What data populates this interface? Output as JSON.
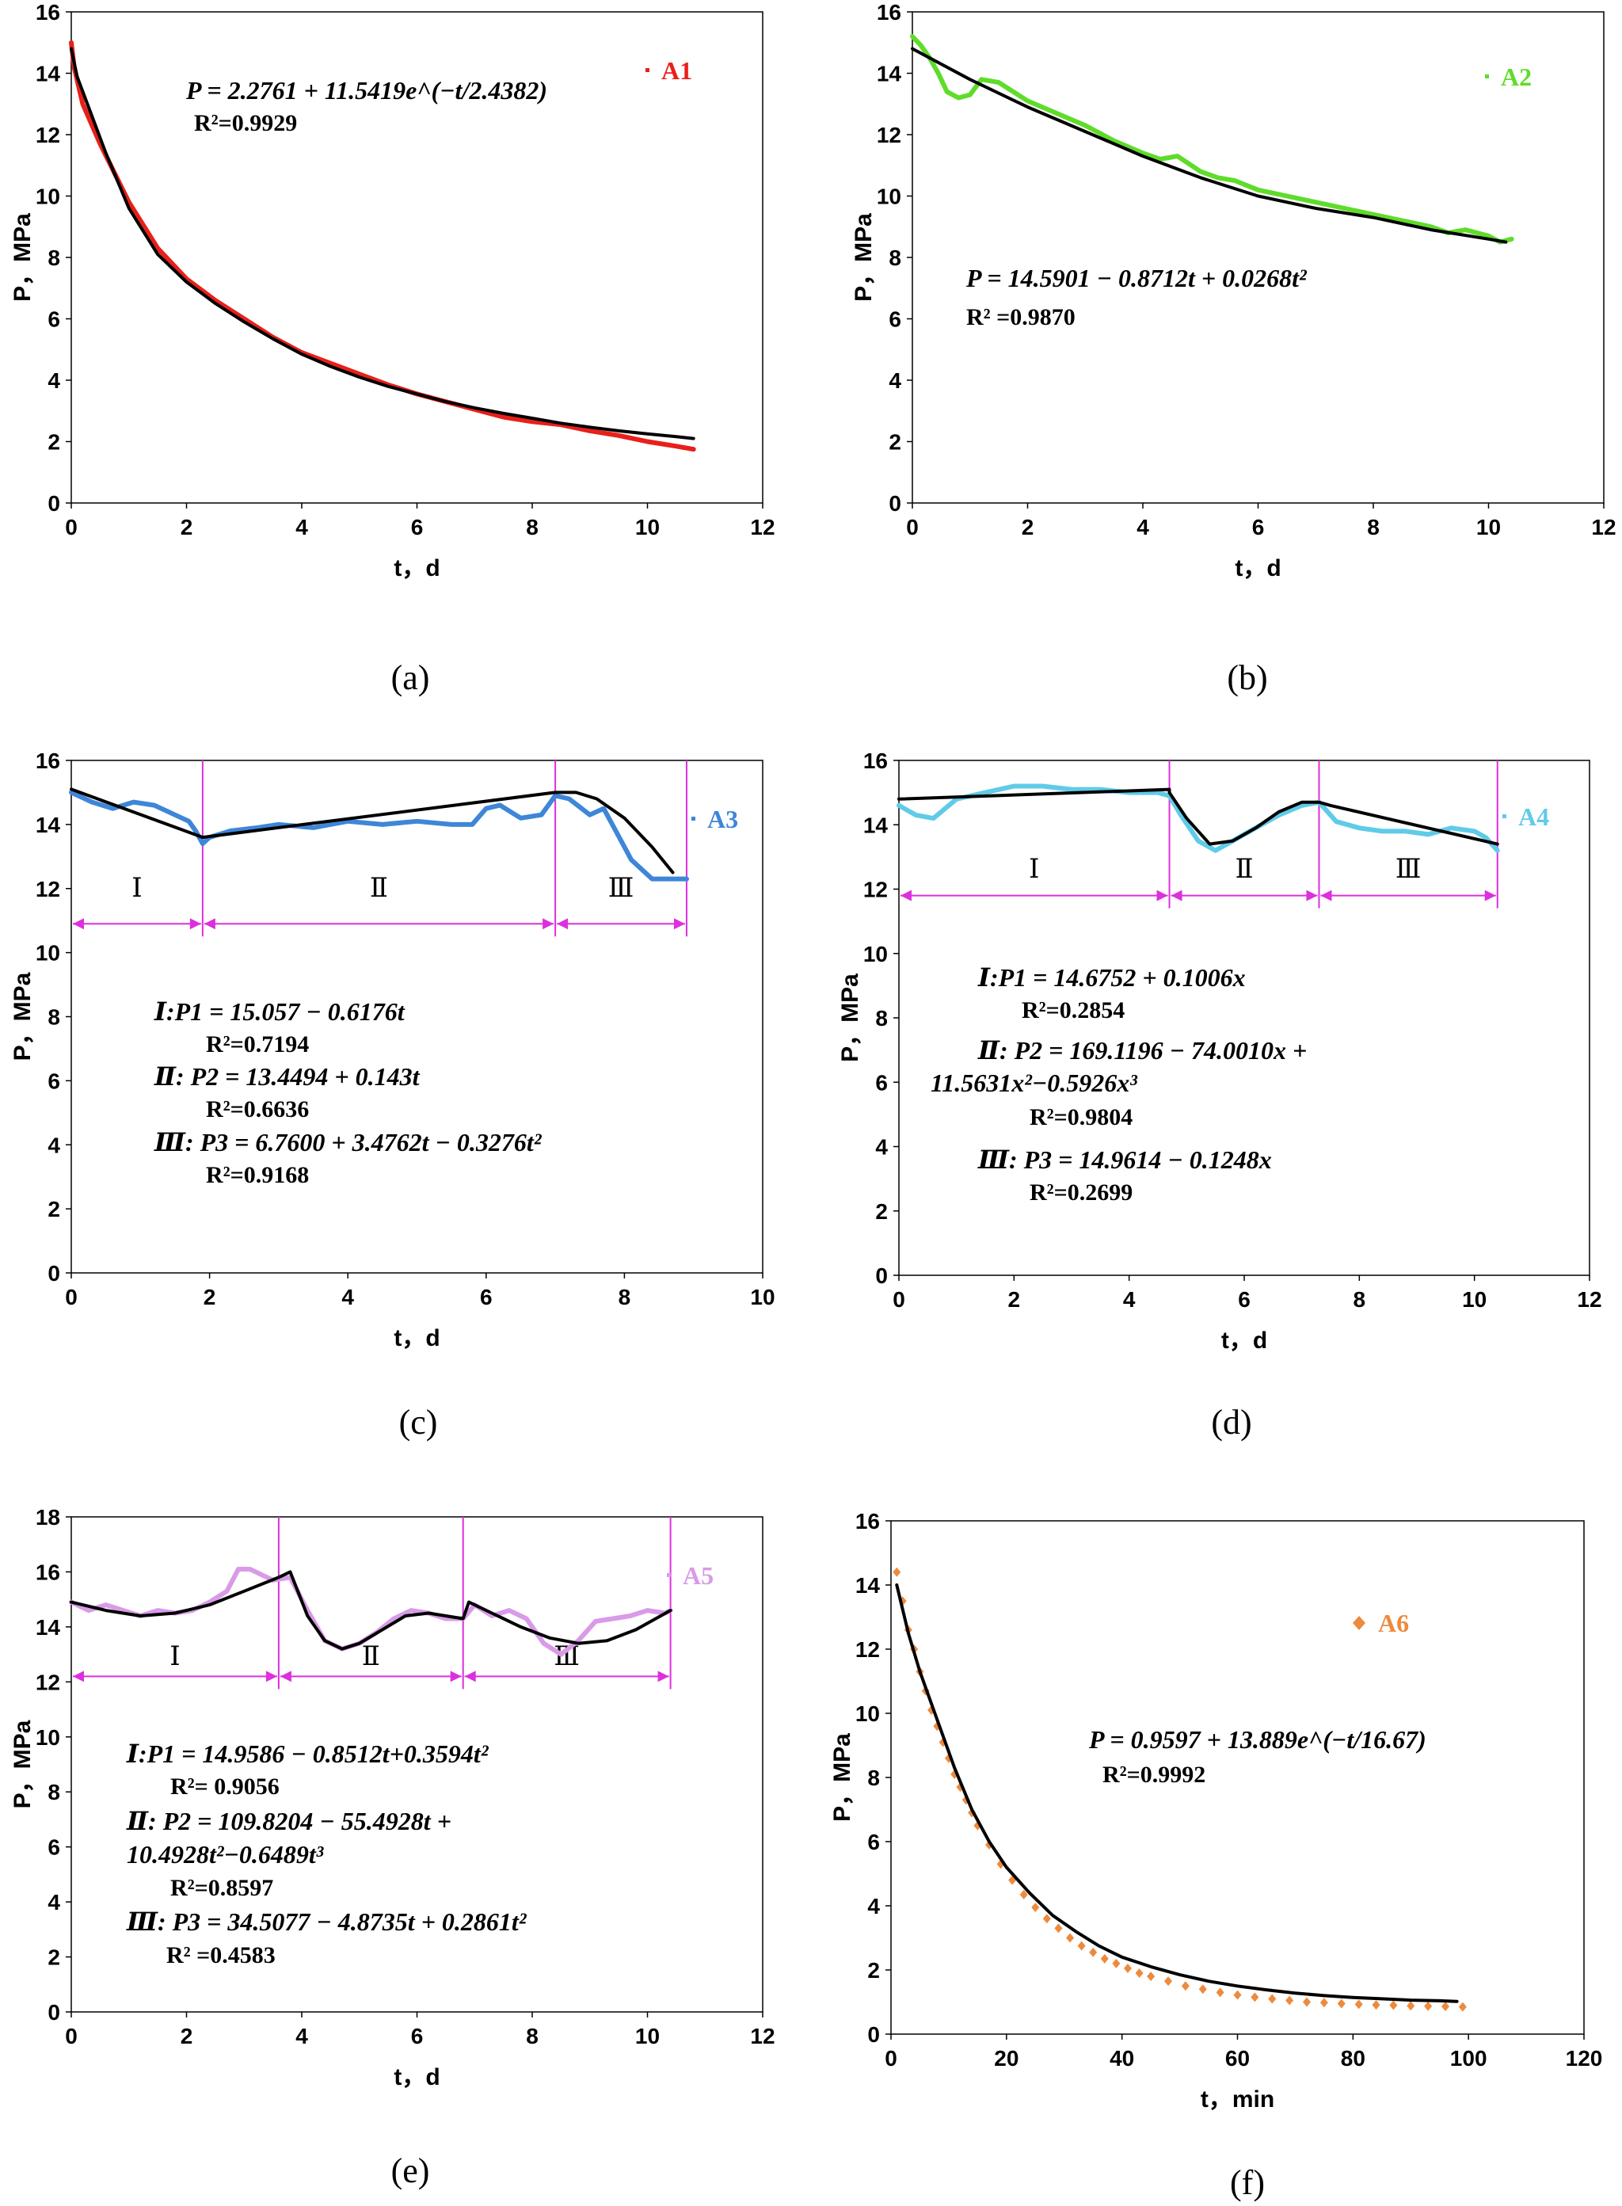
{
  "colors": {
    "A1": "#e8201a",
    "A2": "#5fdc2a",
    "A3": "#3e86d8",
    "A4": "#5fcbe8",
    "A5": "#d99ae8",
    "A6": "#ee8a3c",
    "fit": "#000000",
    "stage": "#dd2fdd"
  },
  "chart_data": [
    {
      "id": "a",
      "type": "line",
      "caption": "(a)",
      "xlabel": "t，d",
      "ylabel": "P，MPa",
      "xlim": [
        0,
        12
      ],
      "ylim": [
        0,
        16
      ],
      "xticks": [
        0,
        2,
        4,
        6,
        8,
        10,
        12
      ],
      "yticks": [
        0,
        2,
        4,
        6,
        8,
        10,
        12,
        14,
        16
      ],
      "legend": "A1",
      "legend_style": "dot",
      "equations": [
        "P = 2.2761 + 11.5419e^(−t/2.4382)"
      ],
      "r2": [
        "R²=0.9929"
      ],
      "series": [
        {
          "name": "A1",
          "role": "data",
          "color_key": "A1",
          "x": [
            0,
            0.05,
            0.2,
            0.5,
            1,
            1.5,
            2,
            2.5,
            3,
            3.5,
            4,
            4.5,
            5,
            5.5,
            6,
            6.5,
            7,
            7.5,
            8,
            8.5,
            9,
            9.5,
            10,
            10.5,
            10.8
          ],
          "y": [
            15.0,
            14.2,
            13.0,
            11.7,
            9.8,
            8.3,
            7.3,
            6.6,
            6.0,
            5.4,
            4.9,
            4.55,
            4.2,
            3.85,
            3.55,
            3.3,
            3.05,
            2.8,
            2.65,
            2.55,
            2.35,
            2.2,
            2.0,
            1.85,
            1.75
          ]
        },
        {
          "name": "fit",
          "role": "fit",
          "color_key": "fit",
          "x": [
            0,
            0.1,
            0.3,
            0.6,
            1,
            1.5,
            2,
            2.5,
            3,
            3.5,
            4,
            4.5,
            5,
            5.5,
            6,
            6.5,
            7,
            7.5,
            8,
            8.5,
            9,
            9.5,
            10,
            10.5,
            10.8
          ],
          "y": [
            14.8,
            13.9,
            12.9,
            11.4,
            9.6,
            8.1,
            7.2,
            6.5,
            5.9,
            5.35,
            4.85,
            4.45,
            4.1,
            3.8,
            3.55,
            3.3,
            3.1,
            2.92,
            2.76,
            2.6,
            2.47,
            2.35,
            2.25,
            2.16,
            2.1
          ]
        }
      ]
    },
    {
      "id": "b",
      "type": "line",
      "caption": "(b)",
      "xlabel": "t，d",
      "ylabel": "P，MPa",
      "xlim": [
        0,
        12
      ],
      "ylim": [
        0,
        16
      ],
      "xticks": [
        0,
        2,
        4,
        6,
        8,
        10,
        12
      ],
      "yticks": [
        0,
        2,
        4,
        6,
        8,
        10,
        12,
        14,
        16
      ],
      "legend": "A2",
      "legend_style": "dot",
      "equations": [
        "P = 14.5901 − 0.8712t + 0.0268t²"
      ],
      "r2": [
        "R² =0.9870"
      ],
      "series": [
        {
          "name": "A2",
          "role": "data",
          "color_key": "A2",
          "x": [
            0,
            0.15,
            0.3,
            0.45,
            0.6,
            0.8,
            1.0,
            1.2,
            1.5,
            2.0,
            2.5,
            3.0,
            3.5,
            4.0,
            4.3,
            4.6,
            5.0,
            5.3,
            5.6,
            6.0,
            6.5,
            7.0,
            7.5,
            8.0,
            8.5,
            9.0,
            9.3,
            9.6,
            10.0,
            10.2,
            10.4
          ],
          "y": [
            15.2,
            14.9,
            14.5,
            14.0,
            13.4,
            13.2,
            13.3,
            13.8,
            13.7,
            13.1,
            12.7,
            12.3,
            11.8,
            11.4,
            11.2,
            11.3,
            10.8,
            10.6,
            10.5,
            10.2,
            10.0,
            9.8,
            9.6,
            9.4,
            9.2,
            9.0,
            8.8,
            8.9,
            8.7,
            8.5,
            8.6
          ]
        },
        {
          "name": "fit",
          "role": "fit",
          "color_key": "fit",
          "x": [
            0,
            1,
            2,
            3,
            4,
            5,
            6,
            7,
            8,
            9,
            10,
            10.3
          ],
          "y": [
            14.8,
            13.8,
            12.9,
            12.1,
            11.3,
            10.6,
            10.0,
            9.6,
            9.3,
            8.9,
            8.6,
            8.5
          ]
        }
      ]
    },
    {
      "id": "c",
      "type": "line",
      "caption": "(c)",
      "xlabel": "t，d",
      "ylabel": "P，MPa",
      "xlim": [
        0,
        10
      ],
      "ylim": [
        0,
        16
      ],
      "xticks": [
        0,
        2,
        4,
        6,
        8,
        10
      ],
      "yticks": [
        0,
        2,
        4,
        6,
        8,
        10,
        12,
        14,
        16
      ],
      "legend": "A3",
      "legend_style": "dot",
      "stages": {
        "boundaries": [
          1.9,
          7.0,
          8.9
        ],
        "start": 0,
        "arrow_y": 10.9,
        "labels": [
          "Ⅰ",
          "Ⅱ",
          "Ⅲ"
        ],
        "label_y": 12.0
      },
      "equations": [
        "Ⅰ:P1 = 15.057 − 0.6176t",
        "Ⅱ: P2 = 13.4494 + 0.143t",
        "Ⅲ: P3 = 6.7600 + 3.4762t − 0.3276t²"
      ],
      "r2": [
        "R²=0.7194",
        "R²=0.6636",
        "R²=0.9168"
      ],
      "series": [
        {
          "name": "A3",
          "role": "data",
          "color_key": "A3",
          "x": [
            0,
            0.3,
            0.6,
            0.9,
            1.2,
            1.5,
            1.7,
            1.8,
            1.9,
            2.0,
            2.3,
            2.7,
            3.0,
            3.5,
            4.0,
            4.5,
            5.0,
            5.5,
            5.8,
            6.0,
            6.2,
            6.5,
            6.8,
            7.0,
            7.2,
            7.5,
            7.7,
            7.9,
            8.1,
            8.4,
            8.7,
            8.9
          ],
          "y": [
            15.0,
            14.7,
            14.5,
            14.7,
            14.6,
            14.3,
            14.1,
            13.8,
            13.4,
            13.6,
            13.8,
            13.9,
            14.0,
            13.9,
            14.1,
            14.0,
            14.1,
            14.0,
            14.0,
            14.5,
            14.6,
            14.2,
            14.3,
            14.9,
            14.8,
            14.3,
            14.5,
            13.7,
            12.9,
            12.3,
            12.3,
            12.3
          ]
        },
        {
          "name": "fit",
          "role": "fit",
          "color_key": "fit",
          "x": [
            0,
            1.9,
            1.9,
            7.0,
            7.3,
            7.6,
            8.0,
            8.4,
            8.7
          ],
          "y": [
            15.1,
            13.6,
            13.6,
            15.0,
            15.0,
            14.8,
            14.2,
            13.3,
            12.5
          ]
        }
      ]
    },
    {
      "id": "d",
      "type": "line",
      "caption": "(d)",
      "xlabel": "t，d",
      "ylabel": "P，MPa",
      "xlim": [
        0,
        12
      ],
      "ylim": [
        0,
        16
      ],
      "xticks": [
        0,
        2,
        4,
        6,
        8,
        10,
        12
      ],
      "yticks": [
        0,
        2,
        4,
        6,
        8,
        10,
        12,
        14,
        16
      ],
      "legend": "A4",
      "legend_style": "dot",
      "stages": {
        "boundaries": [
          4.7,
          7.3,
          10.4
        ],
        "start": 0,
        "arrow_y": 11.8,
        "labels": [
          "Ⅰ",
          "Ⅱ",
          "Ⅲ"
        ],
        "label_y": 12.6
      },
      "equations": [
        "Ⅰ:P1 = 14.6752 + 0.1006x",
        "Ⅱ: P2 = 169.1196 − 74.0010x +",
        "11.5631x²−0.5926x³",
        "Ⅲ: P3 = 14.9614 − 0.1248x"
      ],
      "r2": [
        "R²=0.2854",
        "R²=0.9804",
        "R²=0.2699"
      ],
      "series": [
        {
          "name": "A4",
          "role": "data",
          "color_key": "A4",
          "x": [
            0,
            0.3,
            0.6,
            1.0,
            1.5,
            2.0,
            2.5,
            3.0,
            3.5,
            4.0,
            4.5,
            4.7,
            4.9,
            5.2,
            5.5,
            5.8,
            6.2,
            6.6,
            7.0,
            7.3,
            7.6,
            8.0,
            8.4,
            8.8,
            9.2,
            9.6,
            10.0,
            10.2,
            10.4
          ],
          "y": [
            14.6,
            14.3,
            14.2,
            14.8,
            15.0,
            15.2,
            15.2,
            15.1,
            15.1,
            15.0,
            15.0,
            14.9,
            14.3,
            13.5,
            13.2,
            13.5,
            13.9,
            14.3,
            14.6,
            14.7,
            14.1,
            13.9,
            13.8,
            13.8,
            13.7,
            13.9,
            13.8,
            13.6,
            13.2
          ]
        },
        {
          "name": "fit",
          "role": "fit",
          "color_key": "fit",
          "x": [
            0,
            4.7,
            4.7,
            5.0,
            5.4,
            5.8,
            6.2,
            6.6,
            7.0,
            7.3,
            7.5,
            10.4
          ],
          "y": [
            14.8,
            15.1,
            15.0,
            14.2,
            13.4,
            13.5,
            13.9,
            14.4,
            14.7,
            14.7,
            14.6,
            13.4
          ]
        }
      ]
    },
    {
      "id": "e",
      "type": "line",
      "caption": "(e)",
      "xlabel": "t，d",
      "ylabel": "P，MPa",
      "xlim": [
        0,
        12
      ],
      "ylim": [
        0,
        18
      ],
      "xticks": [
        0,
        2,
        4,
        6,
        8,
        10,
        12
      ],
      "yticks": [
        0,
        2,
        4,
        6,
        8,
        10,
        12,
        14,
        16,
        18
      ],
      "legend": "A5",
      "legend_style": "dot",
      "stages": {
        "boundaries": [
          3.6,
          6.8,
          10.4
        ],
        "start": 0,
        "arrow_y": 12.2,
        "labels": [
          "Ⅰ",
          "Ⅱ",
          "Ⅲ"
        ],
        "label_y": 12.9
      },
      "equations": [
        "Ⅰ:P1 = 14.9586 − 0.8512t+0.3594t²",
        "Ⅱ: P2 = 109.8204 − 55.4928t +",
        "10.4928t²−0.6489t³",
        "Ⅲ: P3 = 34.5077 − 4.8735t + 0.2861t²"
      ],
      "r2": [
        "R²= 0.9056",
        "R²=0.8597",
        "R² =0.4583"
      ],
      "series": [
        {
          "name": "A5",
          "role": "data",
          "color_key": "A5",
          "x": [
            0,
            0.3,
            0.6,
            0.9,
            1.2,
            1.5,
            1.8,
            2.1,
            2.4,
            2.7,
            2.9,
            3.1,
            3.3,
            3.5,
            3.8,
            4.1,
            4.4,
            4.7,
            5.0,
            5.3,
            5.6,
            5.9,
            6.2,
            6.5,
            6.8,
            7.0,
            7.3,
            7.6,
            7.9,
            8.2,
            8.5,
            8.8,
            9.1,
            9.4,
            9.7,
            10.0,
            10.3,
            10.4
          ],
          "y": [
            14.9,
            14.6,
            14.8,
            14.6,
            14.4,
            14.6,
            14.5,
            14.6,
            14.9,
            15.3,
            16.1,
            16.1,
            15.9,
            15.7,
            15.8,
            14.6,
            13.5,
            13.2,
            13.4,
            13.8,
            14.3,
            14.6,
            14.5,
            14.3,
            14.3,
            14.8,
            14.4,
            14.6,
            14.3,
            13.4,
            13.0,
            13.5,
            14.2,
            14.3,
            14.4,
            14.6,
            14.5,
            14.6
          ]
        },
        {
          "name": "fit",
          "role": "fit",
          "color_key": "fit",
          "x": [
            0,
            0.6,
            1.2,
            1.8,
            2.4,
            3.0,
            3.6,
            3.8,
            4.1,
            4.4,
            4.7,
            5.0,
            5.4,
            5.8,
            6.2,
            6.8,
            6.9,
            7.3,
            7.8,
            8.3,
            8.8,
            9.3,
            9.8,
            10.4
          ],
          "y": [
            14.9,
            14.6,
            14.4,
            14.5,
            14.8,
            15.3,
            15.8,
            16.0,
            14.4,
            13.5,
            13.2,
            13.4,
            13.9,
            14.4,
            14.5,
            14.3,
            14.9,
            14.5,
            14.0,
            13.6,
            13.4,
            13.5,
            13.9,
            14.6
          ]
        }
      ]
    },
    {
      "id": "f",
      "type": "line",
      "caption": "(f)",
      "xlabel": "t，min",
      "ylabel": "P，MPa",
      "xlim": [
        0,
        120
      ],
      "ylim": [
        0,
        16
      ],
      "xticks": [
        0,
        20,
        40,
        60,
        80,
        100,
        120
      ],
      "yticks": [
        0,
        2,
        4,
        6,
        8,
        10,
        12,
        14,
        16
      ],
      "legend": "A6",
      "legend_style": "diamond",
      "equations": [
        "P = 0.9597 + 13.889e^(−t/16.67)"
      ],
      "r2": [
        "R²=0.9992"
      ],
      "series": [
        {
          "name": "A6",
          "role": "data",
          "color_key": "A6",
          "marker": "diamond",
          "x": [
            1,
            2,
            3,
            4,
            5,
            6,
            7,
            8,
            9,
            10,
            11,
            12,
            13,
            14,
            15,
            17,
            19,
            21,
            23,
            25,
            27,
            29,
            31,
            33,
            35,
            37,
            39,
            41,
            43,
            45,
            48,
            51,
            54,
            57,
            60,
            63,
            66,
            69,
            72,
            75,
            78,
            81,
            84,
            87,
            90,
            93,
            96,
            99
          ],
          "y": [
            14.4,
            13.5,
            12.6,
            12.0,
            11.3,
            10.7,
            10.1,
            9.6,
            9.1,
            8.6,
            8.1,
            7.7,
            7.3,
            6.9,
            6.5,
            5.9,
            5.3,
            4.8,
            4.35,
            3.95,
            3.6,
            3.3,
            3.0,
            2.75,
            2.55,
            2.35,
            2.2,
            2.05,
            1.9,
            1.8,
            1.65,
            1.5,
            1.4,
            1.3,
            1.22,
            1.15,
            1.1,
            1.05,
            1.0,
            0.98,
            0.95,
            0.93,
            0.91,
            0.9,
            0.88,
            0.87,
            0.86,
            0.85
          ]
        },
        {
          "name": "fit",
          "role": "fit",
          "color_key": "fit",
          "x": [
            1,
            3,
            5,
            8,
            11,
            14,
            17,
            20,
            24,
            28,
            32,
            36,
            40,
            45,
            50,
            55,
            60,
            65,
            70,
            75,
            80,
            85,
            90,
            95,
            98
          ],
          "y": [
            14.0,
            12.5,
            11.3,
            9.8,
            8.3,
            7.0,
            6.0,
            5.2,
            4.4,
            3.7,
            3.2,
            2.75,
            2.4,
            2.1,
            1.85,
            1.65,
            1.5,
            1.38,
            1.28,
            1.2,
            1.14,
            1.1,
            1.06,
            1.04,
            1.02
          ]
        }
      ]
    }
  ]
}
